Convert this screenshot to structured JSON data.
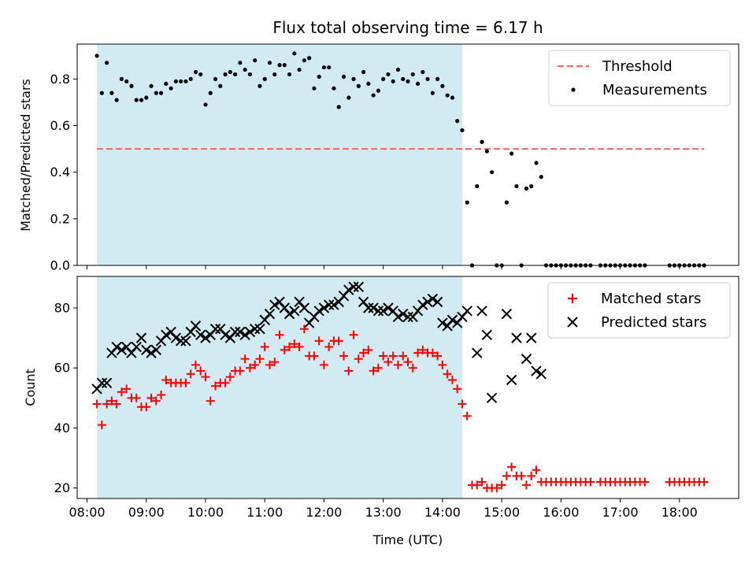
{
  "title": "Flux total observing time = 6.17 h",
  "colors": {
    "span": "#add8e6",
    "threshold": "#ff6060",
    "matched": "#ff0000",
    "predicted": "#000000",
    "measure": "#000000"
  },
  "chart_data": [
    {
      "type": "scatter",
      "ylabel": "Matched/Predicted stars",
      "xlim": [
        "07:50",
        "19:00"
      ],
      "ylim": [
        0,
        0.95
      ],
      "yticks": [
        0.0,
        0.2,
        0.4,
        0.6,
        0.8
      ],
      "legend_placement": "top-right",
      "shaded_span": [
        "08:10",
        "14:20"
      ],
      "threshold": {
        "name": "Threshold",
        "value": 0.5,
        "x_range": [
          "08:10",
          "18:25"
        ]
      },
      "series": [
        {
          "name": "Measurements",
          "x": [
            "08:10",
            "08:15",
            "08:20",
            "08:25",
            "08:30",
            "08:35",
            "08:40",
            "08:45",
            "08:50",
            "08:55",
            "09:00",
            "09:05",
            "09:10",
            "09:15",
            "09:20",
            "09:25",
            "09:30",
            "09:35",
            "09:40",
            "09:45",
            "09:50",
            "09:55",
            "10:00",
            "10:05",
            "10:10",
            "10:15",
            "10:20",
            "10:25",
            "10:30",
            "10:35",
            "10:40",
            "10:45",
            "10:50",
            "10:55",
            "11:00",
            "11:05",
            "11:10",
            "11:15",
            "11:20",
            "11:25",
            "11:30",
            "11:35",
            "11:40",
            "11:45",
            "11:50",
            "11:55",
            "12:00",
            "12:05",
            "12:10",
            "12:15",
            "12:20",
            "12:25",
            "12:30",
            "12:35",
            "12:40",
            "12:45",
            "12:50",
            "12:55",
            "13:00",
            "13:05",
            "13:10",
            "13:15",
            "13:20",
            "13:25",
            "13:30",
            "13:35",
            "13:40",
            "13:45",
            "13:50",
            "13:55",
            "14:00",
            "14:05",
            "14:10",
            "14:15",
            "14:20",
            "14:25",
            "14:30",
            "14:35",
            "14:40",
            "14:45",
            "14:50",
            "14:55",
            "15:00",
            "15:05",
            "15:10",
            "15:15",
            "15:20",
            "15:25",
            "15:30",
            "15:35",
            "15:40",
            "15:45",
            "15:50",
            "15:55",
            "16:00",
            "16:05",
            "16:10",
            "16:15",
            "16:20",
            "16:25",
            "16:30",
            "16:40",
            "16:45",
            "16:50",
            "16:55",
            "17:00",
            "17:05",
            "17:10",
            "17:15",
            "17:20",
            "17:25",
            "17:50",
            "17:55",
            "18:00",
            "18:05",
            "18:10",
            "18:15",
            "18:20",
            "18:25"
          ],
          "y": [
            0.9,
            0.74,
            0.87,
            0.74,
            0.71,
            0.8,
            0.79,
            0.77,
            0.71,
            0.71,
            0.72,
            0.77,
            0.74,
            0.74,
            0.78,
            0.76,
            0.79,
            0.79,
            0.79,
            0.8,
            0.83,
            0.82,
            0.69,
            0.74,
            0.8,
            0.77,
            0.82,
            0.83,
            0.82,
            0.87,
            0.84,
            0.82,
            0.88,
            0.77,
            0.8,
            0.87,
            0.82,
            0.86,
            0.86,
            0.82,
            0.91,
            0.84,
            0.88,
            0.89,
            0.76,
            0.81,
            0.85,
            0.85,
            0.76,
            0.68,
            0.81,
            0.72,
            0.8,
            0.77,
            0.83,
            0.78,
            0.73,
            0.75,
            0.8,
            0.82,
            0.79,
            0.84,
            0.8,
            0.79,
            0.82,
            0.78,
            0.83,
            0.8,
            0.74,
            0.8,
            0.77,
            0.73,
            0.72,
            0.62,
            0.58,
            0.27,
            0.0,
            0.34,
            0.53,
            0.49,
            0.4,
            0.0,
            0.0,
            0.27,
            0.48,
            0.34,
            0.0,
            0.33,
            0.34,
            0.44,
            0.38,
            0.0,
            0.0,
            0.0,
            0.0,
            0.0,
            0.0,
            0.0,
            0.0,
            0.0,
            0.0,
            0.0,
            0.0,
            0.0,
            0.0,
            0.0,
            0.0,
            0.0,
            0.0,
            0.0,
            0.0,
            0.0,
            0.0,
            0.0,
            0.0,
            0.0,
            0.0,
            0.0,
            0.0
          ]
        }
      ]
    },
    {
      "type": "scatter",
      "xlabel": "Time (UTC)",
      "ylabel": "Count",
      "xlim": [
        "07:50",
        "19:00"
      ],
      "ylim": [
        16.5,
        90.5
      ],
      "yticks": [
        20,
        40,
        60,
        80
      ],
      "xticks": [
        "08:00",
        "09:00",
        "10:00",
        "11:00",
        "12:00",
        "13:00",
        "14:00",
        "15:00",
        "16:00",
        "17:00",
        "18:00"
      ],
      "legend_placement": "top-right",
      "shaded_span": [
        "08:10",
        "14:20"
      ],
      "series": [
        {
          "name": "Matched stars",
          "x": [
            "08:10",
            "08:15",
            "08:20",
            "08:25",
            "08:30",
            "08:35",
            "08:40",
            "08:45",
            "08:50",
            "08:55",
            "09:00",
            "09:05",
            "09:10",
            "09:15",
            "09:20",
            "09:25",
            "09:30",
            "09:35",
            "09:40",
            "09:45",
            "09:50",
            "09:55",
            "10:00",
            "10:05",
            "10:10",
            "10:15",
            "10:20",
            "10:25",
            "10:30",
            "10:35",
            "10:40",
            "10:45",
            "10:50",
            "10:55",
            "11:00",
            "11:05",
            "11:10",
            "11:15",
            "11:20",
            "11:25",
            "11:30",
            "11:35",
            "11:40",
            "11:45",
            "11:50",
            "11:55",
            "12:00",
            "12:05",
            "12:10",
            "12:15",
            "12:20",
            "12:25",
            "12:30",
            "12:35",
            "12:40",
            "12:45",
            "12:50",
            "12:55",
            "13:00",
            "13:05",
            "13:10",
            "13:15",
            "13:20",
            "13:25",
            "13:30",
            "13:35",
            "13:40",
            "13:45",
            "13:50",
            "13:55",
            "14:00",
            "14:05",
            "14:10",
            "14:15",
            "14:20",
            "14:25",
            "14:30",
            "14:35",
            "14:40",
            "14:45",
            "14:50",
            "14:55",
            "15:00",
            "15:05",
            "15:10",
            "15:15",
            "15:20",
            "15:25",
            "15:30",
            "15:35",
            "15:40",
            "15:45",
            "15:50",
            "15:55",
            "16:00",
            "16:05",
            "16:10",
            "16:15",
            "16:20",
            "16:25",
            "16:30",
            "16:40",
            "16:45",
            "16:50",
            "16:55",
            "17:00",
            "17:05",
            "17:10",
            "17:15",
            "17:20",
            "17:25",
            "17:50",
            "17:55",
            "18:00",
            "18:05",
            "18:10",
            "18:15",
            "18:20",
            "18:25"
          ],
          "y": [
            48,
            41,
            48,
            49,
            48,
            52,
            53,
            50,
            50,
            47,
            47,
            50,
            49,
            51,
            56,
            55,
            55,
            55,
            55,
            58,
            61,
            59,
            57,
            49,
            54,
            55,
            55,
            57,
            59,
            59,
            63,
            60,
            61,
            63,
            67,
            61,
            62,
            71,
            66,
            67,
            68,
            67,
            73,
            64,
            64,
            69,
            61,
            67,
            69,
            69,
            64,
            59,
            71,
            63,
            65,
            66,
            59,
            60,
            64,
            62,
            64,
            61,
            64,
            62,
            60,
            65,
            66,
            65,
            65,
            64,
            61,
            58,
            56,
            53,
            48,
            44,
            21,
            21,
            22,
            20,
            20,
            20,
            21,
            24,
            27,
            24,
            24,
            21,
            24,
            26,
            22,
            22,
            22,
            22,
            22,
            22,
            22,
            22,
            22,
            22,
            22,
            22,
            22,
            22,
            22,
            22,
            22,
            22,
            22,
            22,
            22,
            22,
            22,
            22,
            22,
            22,
            22,
            22,
            22
          ]
        },
        {
          "name": "Predicted stars",
          "x": [
            "08:10",
            "08:15",
            "08:20",
            "08:25",
            "08:30",
            "08:35",
            "08:40",
            "08:45",
            "08:50",
            "08:55",
            "09:00",
            "09:05",
            "09:10",
            "09:15",
            "09:20",
            "09:25",
            "09:30",
            "09:35",
            "09:40",
            "09:45",
            "09:50",
            "09:55",
            "10:00",
            "10:05",
            "10:10",
            "10:15",
            "10:20",
            "10:25",
            "10:30",
            "10:35",
            "10:40",
            "10:45",
            "10:50",
            "10:55",
            "11:00",
            "11:05",
            "11:10",
            "11:15",
            "11:20",
            "11:25",
            "11:30",
            "11:35",
            "11:40",
            "11:45",
            "11:50",
            "11:55",
            "12:00",
            "12:05",
            "12:10",
            "12:15",
            "12:20",
            "12:25",
            "12:30",
            "12:35",
            "12:40",
            "12:45",
            "12:50",
            "12:55",
            "13:00",
            "13:05",
            "13:10",
            "13:15",
            "13:20",
            "13:25",
            "13:30",
            "13:35",
            "13:40",
            "13:45",
            "13:50",
            "13:55",
            "14:00",
            "14:05",
            "14:10",
            "14:15",
            "14:20",
            "14:25",
            "14:35",
            "14:40",
            "14:45",
            "14:50",
            "15:05",
            "15:10",
            "15:15",
            "15:25",
            "15:30",
            "15:35",
            "15:40"
          ],
          "y": [
            53,
            55,
            55,
            65,
            67,
            66,
            67,
            65,
            67,
            70,
            66,
            65,
            66,
            69,
            71,
            72,
            70,
            69,
            69,
            72,
            74,
            71,
            70,
            71,
            73,
            73,
            71,
            70,
            72,
            72,
            71,
            72,
            73,
            73,
            76,
            78,
            81,
            82,
            80,
            78,
            79,
            82,
            80,
            75,
            77,
            79,
            80,
            81,
            81,
            82,
            84,
            86,
            87,
            87,
            82,
            80,
            80,
            79,
            79,
            80,
            79,
            77,
            78,
            77,
            77,
            79,
            81,
            82,
            83,
            82,
            75,
            74,
            76,
            75,
            77,
            79,
            65,
            79,
            71,
            50,
            78,
            56,
            70,
            63,
            70,
            59,
            58
          ]
        }
      ]
    }
  ]
}
